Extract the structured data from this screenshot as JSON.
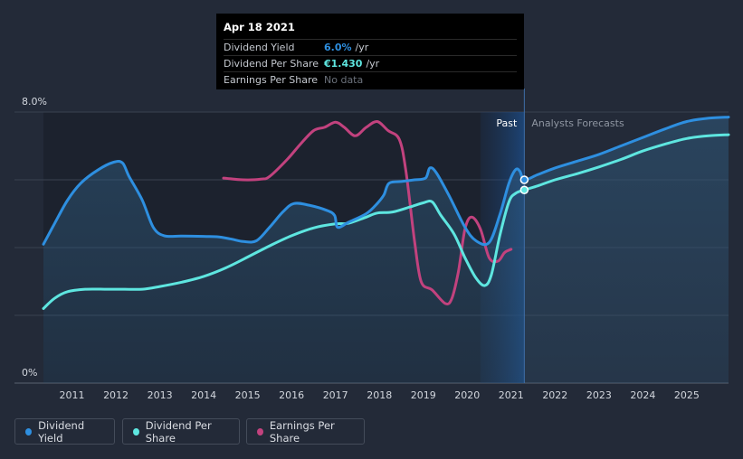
{
  "colors": {
    "dividend_yield": "#2e8fe0",
    "dividend_per_share": "#5ee6e0",
    "earnings_per_share": "#c2427e"
  },
  "tooltip": {
    "date": "Apr 18 2021",
    "rows": [
      {
        "name": "Dividend Yield",
        "value": "6.0%",
        "unit": "/yr",
        "color": "#2e8fe0"
      },
      {
        "name": "Dividend Per Share",
        "value": "€1.430",
        "unit": "/yr",
        "color": "#5ee6e0"
      },
      {
        "name": "Earnings Per Share",
        "value": "No data",
        "unit": ""
      }
    ]
  },
  "legend": {
    "dividend_yield": "Dividend Yield",
    "dividend_per_share": "Dividend Per Share",
    "earnings_per_share": "Earnings Per Share"
  },
  "chart_data": {
    "type": "line",
    "title": "",
    "xlabel": "",
    "ylabel": "",
    "ylim": [
      0,
      8
    ],
    "xlim": [
      2010.35,
      2025.95
    ],
    "y_tick_labels": [
      "0%",
      "8.0%"
    ],
    "x_ticks": [
      "2011",
      "2012",
      "2013",
      "2014",
      "2015",
      "2016",
      "2017",
      "2018",
      "2019",
      "2020",
      "2021",
      "2022",
      "2023",
      "2024",
      "2025"
    ],
    "region_labels": {
      "past": "Past",
      "forecast": "Analysts Forecasts"
    },
    "past_end": 2021.3,
    "highlight_start": 2020.3,
    "series": [
      {
        "name": "Dividend Yield",
        "key": "dividend_yield",
        "unit": "%",
        "points": [
          [
            2010.35,
            4.1
          ],
          [
            2010.6,
            4.7
          ],
          [
            2010.9,
            5.4
          ],
          [
            2011.2,
            5.9
          ],
          [
            2011.6,
            6.3
          ],
          [
            2011.95,
            6.52
          ],
          [
            2012.15,
            6.5
          ],
          [
            2012.3,
            6.1
          ],
          [
            2012.6,
            5.4
          ],
          [
            2012.85,
            4.6
          ],
          [
            2013.1,
            4.35
          ],
          [
            2013.5,
            4.34
          ],
          [
            2014.0,
            4.33
          ],
          [
            2014.3,
            4.32
          ],
          [
            2014.6,
            4.26
          ],
          [
            2014.9,
            4.18
          ],
          [
            2015.2,
            4.2
          ],
          [
            2015.5,
            4.6
          ],
          [
            2015.8,
            5.05
          ],
          [
            2016.05,
            5.3
          ],
          [
            2016.4,
            5.25
          ],
          [
            2016.8,
            5.1
          ],
          [
            2016.98,
            4.95
          ],
          [
            2017.05,
            4.6
          ],
          [
            2017.3,
            4.75
          ],
          [
            2017.7,
            5.0
          ],
          [
            2017.95,
            5.3
          ],
          [
            2018.1,
            5.55
          ],
          [
            2018.22,
            5.9
          ],
          [
            2018.5,
            5.95
          ],
          [
            2018.8,
            6.0
          ],
          [
            2019.05,
            6.05
          ],
          [
            2019.15,
            6.35
          ],
          [
            2019.3,
            6.2
          ],
          [
            2019.6,
            5.5
          ],
          [
            2019.95,
            4.6
          ],
          [
            2020.2,
            4.2
          ],
          [
            2020.5,
            4.15
          ],
          [
            2020.75,
            5.0
          ],
          [
            2020.95,
            5.9
          ],
          [
            2021.1,
            6.3
          ],
          [
            2021.2,
            6.25
          ],
          [
            2021.3,
            6.0
          ],
          [
            2021.6,
            6.15
          ],
          [
            2022.0,
            6.35
          ],
          [
            2022.5,
            6.55
          ],
          [
            2023.0,
            6.75
          ],
          [
            2023.5,
            7.0
          ],
          [
            2024.0,
            7.25
          ],
          [
            2024.5,
            7.5
          ],
          [
            2025.0,
            7.72
          ],
          [
            2025.5,
            7.82
          ],
          [
            2025.95,
            7.85
          ]
        ]
      },
      {
        "name": "Dividend Per Share",
        "key": "dividend_per_share",
        "unit": "€",
        "points": [
          [
            2010.35,
            2.2
          ],
          [
            2010.6,
            2.5
          ],
          [
            2010.9,
            2.7
          ],
          [
            2011.3,
            2.77
          ],
          [
            2011.8,
            2.77
          ],
          [
            2012.2,
            2.77
          ],
          [
            2012.6,
            2.77
          ],
          [
            2013.0,
            2.85
          ],
          [
            2013.5,
            2.98
          ],
          [
            2014.0,
            3.15
          ],
          [
            2014.5,
            3.4
          ],
          [
            2015.0,
            3.72
          ],
          [
            2015.5,
            4.05
          ],
          [
            2016.0,
            4.35
          ],
          [
            2016.5,
            4.58
          ],
          [
            2017.0,
            4.7
          ],
          [
            2017.3,
            4.72
          ],
          [
            2017.7,
            4.9
          ],
          [
            2017.95,
            5.02
          ],
          [
            2018.3,
            5.05
          ],
          [
            2018.7,
            5.2
          ],
          [
            2019.0,
            5.32
          ],
          [
            2019.2,
            5.35
          ],
          [
            2019.4,
            4.95
          ],
          [
            2019.7,
            4.4
          ],
          [
            2019.95,
            3.7
          ],
          [
            2020.2,
            3.1
          ],
          [
            2020.4,
            2.88
          ],
          [
            2020.55,
            3.2
          ],
          [
            2020.75,
            4.4
          ],
          [
            2020.95,
            5.35
          ],
          [
            2021.1,
            5.6
          ],
          [
            2021.3,
            5.7
          ],
          [
            2021.6,
            5.82
          ],
          [
            2022.0,
            6.0
          ],
          [
            2022.5,
            6.18
          ],
          [
            2023.0,
            6.38
          ],
          [
            2023.5,
            6.6
          ],
          [
            2024.0,
            6.85
          ],
          [
            2024.5,
            7.05
          ],
          [
            2025.0,
            7.22
          ],
          [
            2025.5,
            7.3
          ],
          [
            2025.95,
            7.33
          ]
        ]
      },
      {
        "name": "Earnings Per Share",
        "key": "earnings_per_share",
        "unit": "€",
        "points": [
          [
            2014.45,
            6.05
          ],
          [
            2014.9,
            6.0
          ],
          [
            2015.3,
            6.02
          ],
          [
            2015.5,
            6.1
          ],
          [
            2015.9,
            6.6
          ],
          [
            2016.2,
            7.05
          ],
          [
            2016.5,
            7.45
          ],
          [
            2016.75,
            7.55
          ],
          [
            2017.0,
            7.7
          ],
          [
            2017.2,
            7.55
          ],
          [
            2017.45,
            7.3
          ],
          [
            2017.7,
            7.55
          ],
          [
            2017.95,
            7.72
          ],
          [
            2018.2,
            7.45
          ],
          [
            2018.45,
            7.2
          ],
          [
            2018.6,
            6.3
          ],
          [
            2018.8,
            4.2
          ],
          [
            2018.95,
            3.0
          ],
          [
            2019.2,
            2.75
          ],
          [
            2019.5,
            2.35
          ],
          [
            2019.65,
            2.5
          ],
          [
            2019.8,
            3.3
          ],
          [
            2019.95,
            4.55
          ],
          [
            2020.1,
            4.9
          ],
          [
            2020.3,
            4.55
          ],
          [
            2020.5,
            3.7
          ],
          [
            2020.7,
            3.6
          ],
          [
            2020.85,
            3.85
          ],
          [
            2021.0,
            3.95
          ]
        ]
      }
    ],
    "markers": [
      {
        "series": "dividend_yield",
        "x": 2021.3,
        "y": 6.0
      },
      {
        "series": "dividend_per_share",
        "x": 2021.3,
        "y": 5.7
      }
    ]
  }
}
